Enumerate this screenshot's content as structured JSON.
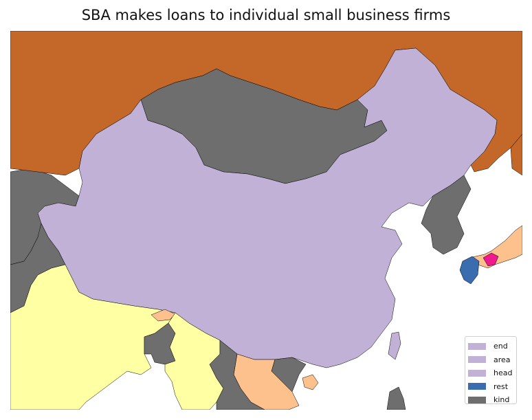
{
  "title": "SBA makes loans to individual small business firms",
  "map": {
    "type": "choropleth",
    "region": "East Asia",
    "colors": {
      "ocean": "#ffffff",
      "russia": "#c4682a",
      "china": "#c2b1d6",
      "mongolia_korea_neighbors": "#6e6e6e",
      "india_myanmar": "#ffffa3",
      "bhutan_laos_japan": "#fdc18d",
      "shikoku": "#ef1a8c",
      "kyushu": "#3a6cb0"
    }
  },
  "legend": {
    "items": [
      {
        "label": "end",
        "color": "#c2b1d6"
      },
      {
        "label": "area",
        "color": "#c2b1d6"
      },
      {
        "label": "head",
        "color": "#c2b1d6"
      },
      {
        "label": "rest",
        "color": "#3a6cb0"
      },
      {
        "label": "kind",
        "color": "#6e6e6e"
      }
    ]
  }
}
